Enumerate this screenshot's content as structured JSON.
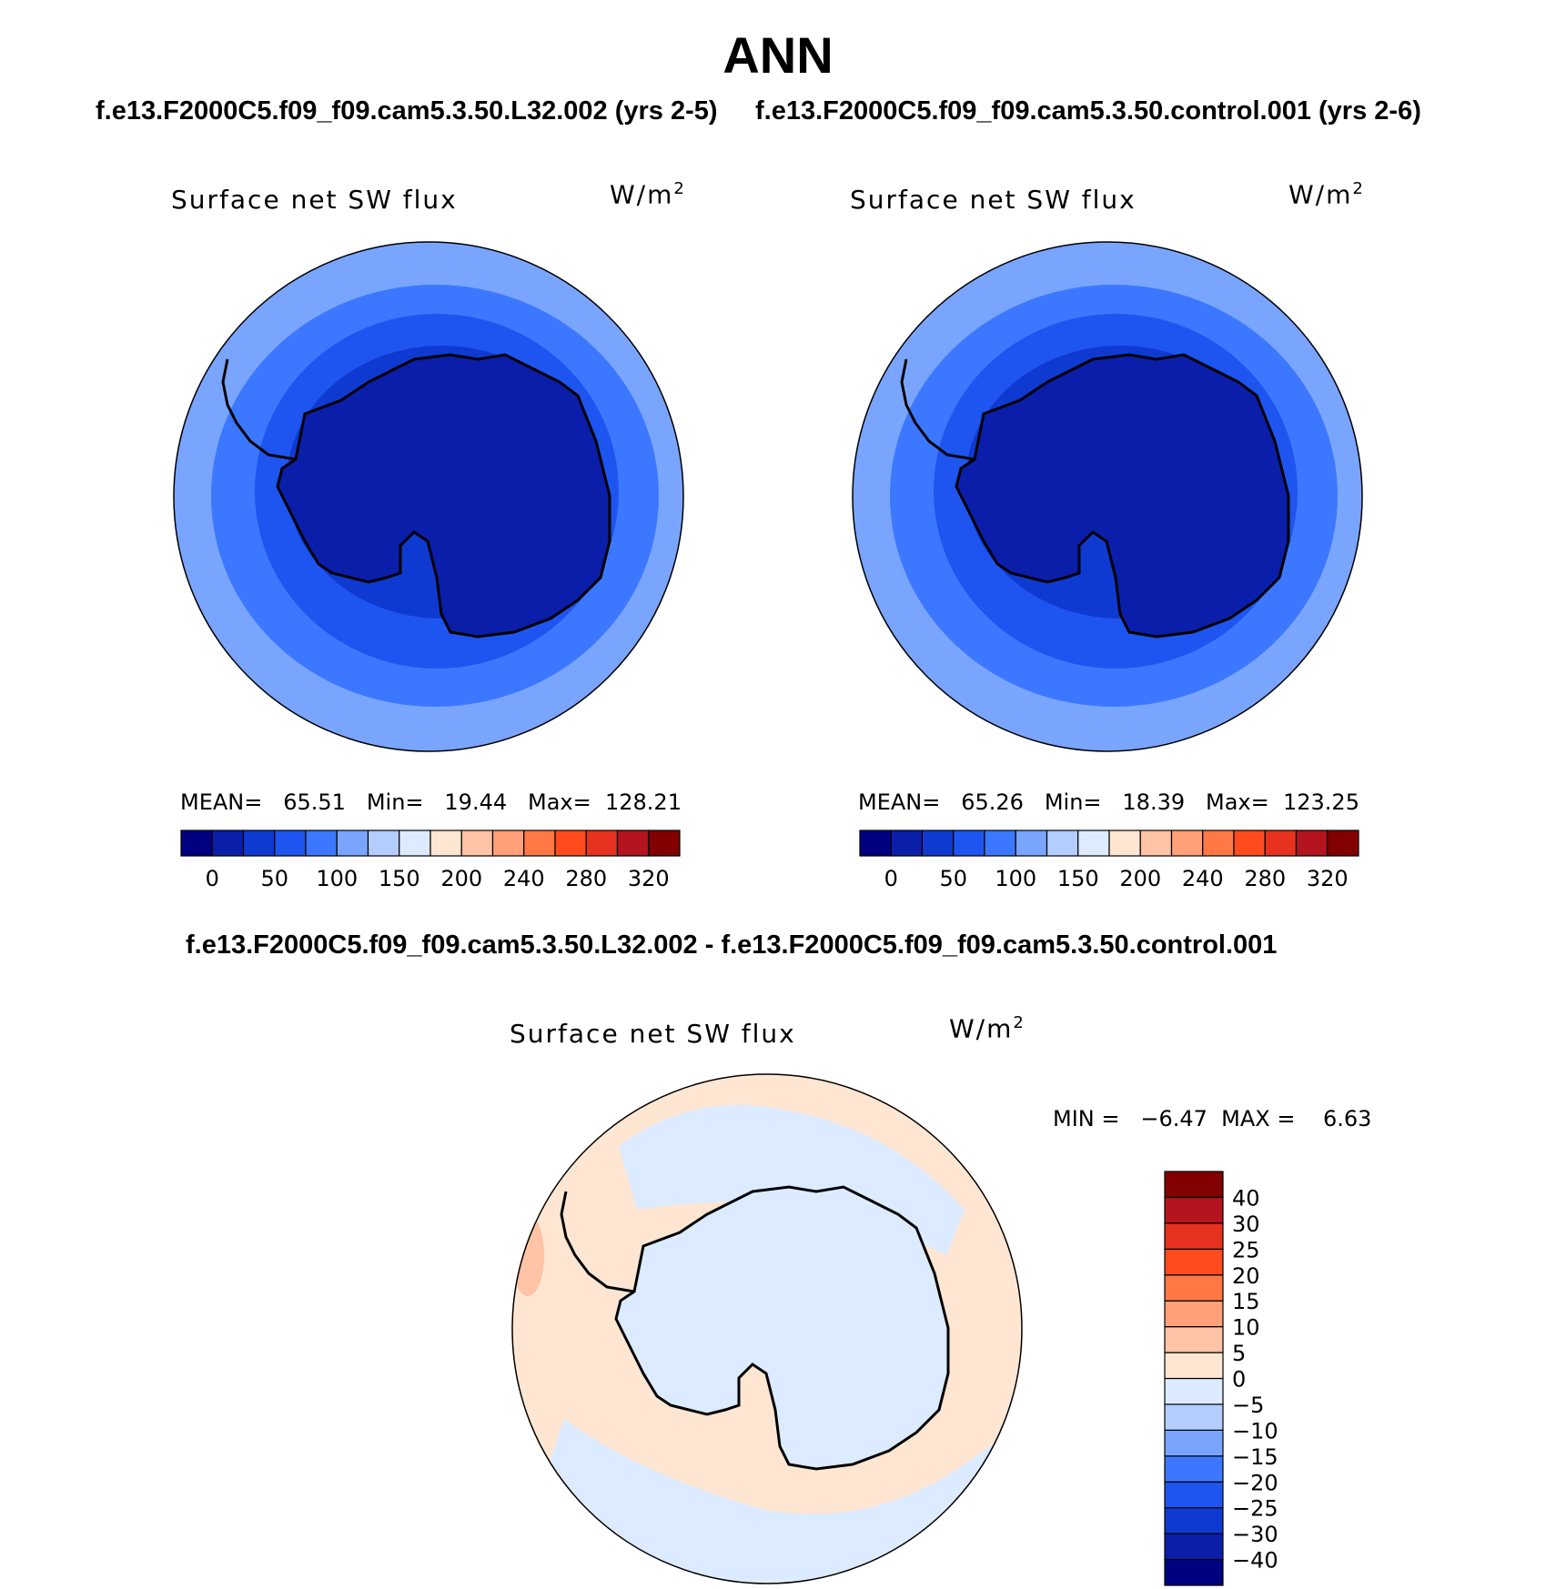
{
  "season": "ANN",
  "case1_title": "f.e13.F2000C5.f09_f09.cam5.3.50.L32.002 (yrs 2-5)",
  "case2_title": "f.e13.F2000C5.f09_f09.cam5.3.50.control.001 (yrs 2-6)",
  "diff_title": "f.e13.F2000C5.f09_f09.cam5.3.50.L32.002 - f.e13.F2000C5.f09_f09.cam5.3.50.control.001",
  "panels": [
    {
      "variable": "Surface net SW flux",
      "units": "W/m",
      "units_exp": "2",
      "stats": "MEAN=   65.51   Min=   19.44   Max=  128.21"
    },
    {
      "variable": "Surface net SW flux",
      "units": "W/m",
      "units_exp": "2",
      "stats": "MEAN=   65.26   Min=   18.39   Max=  123.25"
    }
  ],
  "diff_panel": {
    "variable": "Surface net SW flux",
    "units": "W/m",
    "units_exp": "2",
    "stats": "MIN =   −6.47  MAX =    6.63"
  },
  "colorbar_main": {
    "colors": [
      "#000080",
      "#0a1eaa",
      "#0f3ad2",
      "#1e55f0",
      "#3c78ff",
      "#7aa5ff",
      "#b4cdff",
      "#dcebff",
      "#ffe6d2",
      "#ffc3a5",
      "#ffa078",
      "#ff7846",
      "#ff4b1e",
      "#e6321e",
      "#b4141e",
      "#820000"
    ],
    "ticks": [
      "0",
      "50",
      "100",
      "150",
      "200",
      "240",
      "280",
      "320"
    ],
    "tick_edges": [
      1,
      3,
      5,
      7,
      9,
      11,
      13,
      15
    ]
  },
  "colorbar_diff": {
    "colors": [
      "#000080",
      "#0a1eaa",
      "#0f3ad2",
      "#1e55f0",
      "#3c78ff",
      "#7aa5ff",
      "#b4cdff",
      "#dcebff",
      "#ffe6d2",
      "#ffc3a5",
      "#ffa078",
      "#ff7846",
      "#ff4b1e",
      "#e6321e",
      "#b4141e",
      "#820000"
    ],
    "labels": [
      "−40",
      "−30",
      "−25",
      "−20",
      "−15",
      "−10",
      "−5",
      "0",
      "5",
      "10",
      "15",
      "20",
      "25",
      "30",
      "40"
    ]
  },
  "map_colors": {
    "outer": "#7aa5ff",
    "ring2": "#3c78ff",
    "ring3": "#1e55f0",
    "ring4": "#0f3ad2",
    "inner": "#0a1eaa",
    "diff_neg": "#dcebff",
    "diff_pos": "#ffe6d2",
    "diff_pos2": "#ffc3a5"
  }
}
